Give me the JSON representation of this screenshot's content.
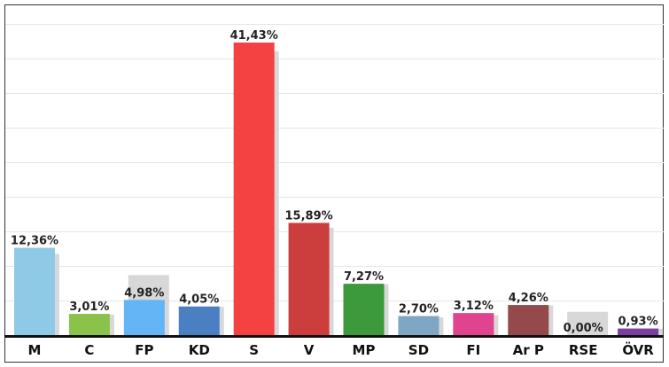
{
  "chart_data": {
    "type": "bar",
    "title": "",
    "xlabel": "",
    "ylabel": "",
    "ylim": [
      0,
      44
    ],
    "grid": true,
    "legend": "none",
    "categories": [
      "M",
      "C",
      "FP",
      "KD",
      "S",
      "V",
      "MP",
      "SD",
      "FI",
      "Ar P",
      "RSE",
      "ÖVR"
    ],
    "series": [
      {
        "values": [
          12.36,
          3.01,
          4.98,
          4.05,
          41.43,
          15.89,
          7.27,
          2.7,
          3.12,
          4.26,
          0.0,
          0.93
        ],
        "labels": [
          "12,36%",
          "3,01%",
          "4,98%",
          "4,05%",
          "41,43%",
          "15,89%",
          "7,27%",
          "2,70%",
          "3,12%",
          "4,26%",
          "0,00%",
          "0,93%"
        ],
        "colors": [
          "#8ecae6",
          "#8bc34a",
          "#64b5f6",
          "#4a7fc1",
          "#f44242",
          "#cc3e3e",
          "#3c9a3c",
          "#7fa7c4",
          "#e0448f",
          "#944a4a",
          "#cccccc",
          "#7b3f9e"
        ]
      },
      {
        "values": [
          11.5,
          2.9,
          8.5,
          4.0,
          40.2,
          15.2,
          7.2,
          2.5,
          2.8,
          4.2,
          3.3,
          0.9
        ],
        "color": "#d8d8d8"
      }
    ]
  }
}
